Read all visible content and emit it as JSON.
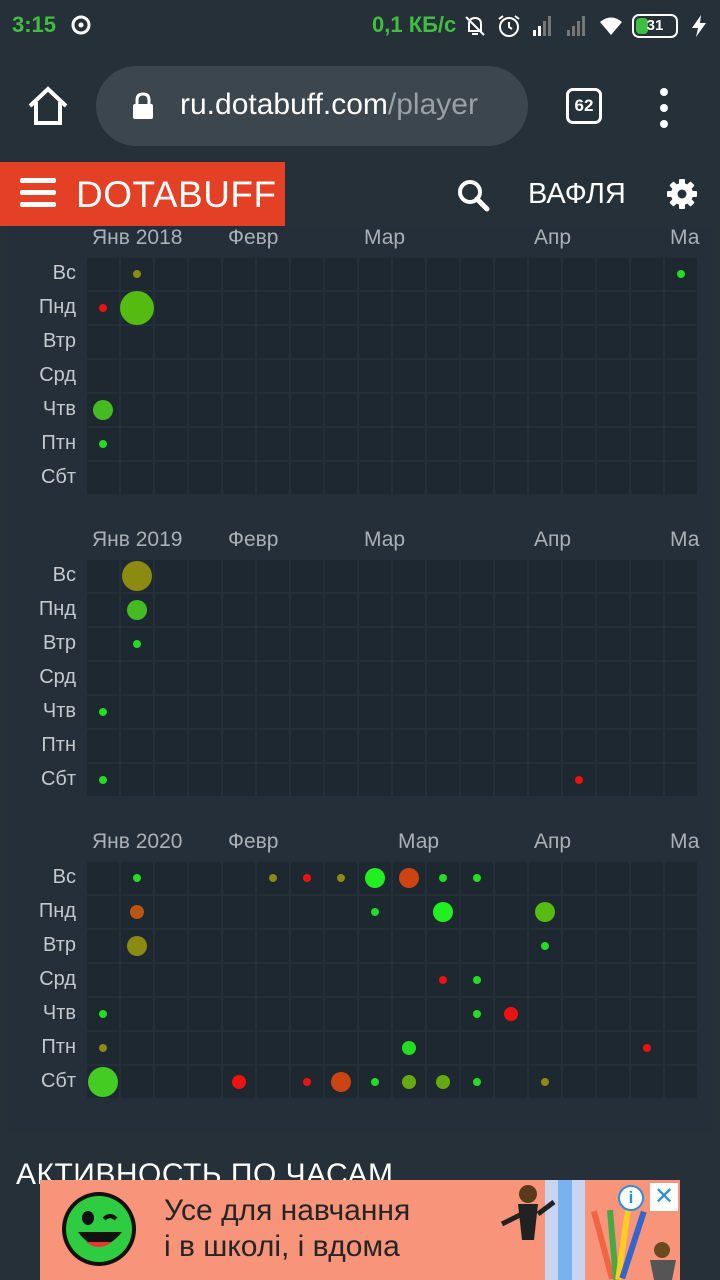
{
  "status_bar": {
    "time": "3:15",
    "net_speed": "0,1 КБ/с",
    "battery_level": "31",
    "battery_fraction": 0.31,
    "icons": [
      "cast-icon",
      "mute-icon",
      "alarm-icon",
      "signal-icon",
      "signal-off-icon",
      "wifi-icon",
      "battery-icon",
      "charging-icon"
    ]
  },
  "browser": {
    "url_host": "ru.dotabuff.com",
    "url_path": "/player",
    "tab_count": "62"
  },
  "site_header": {
    "brand": "DOTABUFF",
    "user_name": "ВАФЛЯ"
  },
  "activity": {
    "day_labels": [
      "Вс",
      "Пнд",
      "Втр",
      "Срд",
      "Чтв",
      "Птн",
      "Сбт"
    ],
    "years": [
      {
        "months": [
          {
            "label": "Янв 2018",
            "week": 0
          },
          {
            "label": "Февр",
            "week": 4
          },
          {
            "label": "Мар",
            "week": 8
          },
          {
            "label": "Апр",
            "week": 13
          },
          {
            "label": "Ма",
            "week": 17
          }
        ],
        "week_count": 18,
        "activity": [
          {
            "week": 1,
            "day": 0,
            "size": "s",
            "color": "#8a8b10"
          },
          {
            "week": 17,
            "day": 0,
            "size": "s",
            "color": "#22dd22"
          },
          {
            "week": 0,
            "day": 1,
            "size": "s",
            "color": "#ee1111"
          },
          {
            "week": 1,
            "day": 1,
            "size": "xl",
            "color": "#55bb11"
          },
          {
            "week": 0,
            "day": 4,
            "size": "m",
            "color": "#44bb22"
          },
          {
            "week": 0,
            "day": 5,
            "size": "s",
            "color": "#22dd22"
          }
        ]
      },
      {
        "months": [
          {
            "label": "Янв 2019",
            "week": 0
          },
          {
            "label": "Февр",
            "week": 4
          },
          {
            "label": "Мар",
            "week": 8
          },
          {
            "label": "Апр",
            "week": 13
          },
          {
            "label": "Ма",
            "week": 17
          }
        ],
        "week_count": 18,
        "activity": [
          {
            "week": 1,
            "day": 0,
            "size": "l",
            "color": "#8a8b10"
          },
          {
            "week": 1,
            "day": 1,
            "size": "m",
            "color": "#44bb22"
          },
          {
            "week": 1,
            "day": 2,
            "size": "s",
            "color": "#22dd22"
          },
          {
            "week": 0,
            "day": 4,
            "size": "s",
            "color": "#22dd22"
          },
          {
            "week": 0,
            "day": 6,
            "size": "s",
            "color": "#22dd22"
          },
          {
            "week": 14,
            "day": 6,
            "size": "s",
            "color": "#ee1111"
          }
        ]
      },
      {
        "months": [
          {
            "label": "Янв 2020",
            "week": 0
          },
          {
            "label": "Февр",
            "week": 4
          },
          {
            "label": "Мар",
            "week": 9
          },
          {
            "label": "Апр",
            "week": 13
          },
          {
            "label": "Ма",
            "week": 17
          }
        ],
        "week_count": 18,
        "activity": [
          {
            "week": 1,
            "day": 0,
            "size": "s",
            "color": "#22dd22"
          },
          {
            "week": 5,
            "day": 0,
            "size": "s",
            "color": "#8a8b10"
          },
          {
            "week": 6,
            "day": 0,
            "size": "s",
            "color": "#ee1111"
          },
          {
            "week": 7,
            "day": 0,
            "size": "s",
            "color": "#8a8b10"
          },
          {
            "week": 8,
            "day": 0,
            "size": "m",
            "color": "#22ee22"
          },
          {
            "week": 9,
            "day": 0,
            "size": "m",
            "color": "#cc4411"
          },
          {
            "week": 10,
            "day": 0,
            "size": "s",
            "color": "#22dd22"
          },
          {
            "week": 11,
            "day": 0,
            "size": "s",
            "color": "#22dd22"
          },
          {
            "week": 1,
            "day": 1,
            "size": "sm",
            "color": "#bb5511"
          },
          {
            "week": 8,
            "day": 1,
            "size": "s",
            "color": "#22dd22"
          },
          {
            "week": 10,
            "day": 1,
            "size": "m",
            "color": "#22ee22"
          },
          {
            "week": 13,
            "day": 1,
            "size": "m",
            "color": "#55bb11"
          },
          {
            "week": 1,
            "day": 2,
            "size": "m",
            "color": "#8a8b10"
          },
          {
            "week": 13,
            "day": 2,
            "size": "s",
            "color": "#22dd22"
          },
          {
            "week": 10,
            "day": 3,
            "size": "s",
            "color": "#ee1111"
          },
          {
            "week": 11,
            "day": 3,
            "size": "s",
            "color": "#22dd22"
          },
          {
            "week": 0,
            "day": 4,
            "size": "s",
            "color": "#22dd22"
          },
          {
            "week": 11,
            "day": 4,
            "size": "s",
            "color": "#22dd22"
          },
          {
            "week": 12,
            "day": 4,
            "size": "sm",
            "color": "#ee1111"
          },
          {
            "week": 0,
            "day": 5,
            "size": "s",
            "color": "#8a8b10"
          },
          {
            "week": 9,
            "day": 5,
            "size": "sm",
            "color": "#22dd22"
          },
          {
            "week": 16,
            "day": 5,
            "size": "s",
            "color": "#ee1111"
          },
          {
            "week": 0,
            "day": 6,
            "size": "l",
            "color": "#44cc22"
          },
          {
            "week": 4,
            "day": 6,
            "size": "sm",
            "color": "#ee1111"
          },
          {
            "week": 6,
            "day": 6,
            "size": "s",
            "color": "#ee1111"
          },
          {
            "week": 7,
            "day": 6,
            "size": "m",
            "color": "#cc4411"
          },
          {
            "week": 8,
            "day": 6,
            "size": "s",
            "color": "#22dd22"
          },
          {
            "week": 9,
            "day": 6,
            "size": "sm",
            "color": "#66aa11"
          },
          {
            "week": 10,
            "day": 6,
            "size": "sm",
            "color": "#66aa11"
          },
          {
            "week": 11,
            "day": 6,
            "size": "s",
            "color": "#22dd22"
          },
          {
            "week": 13,
            "day": 6,
            "size": "s",
            "color": "#8a8b10"
          }
        ]
      }
    ]
  },
  "section_below": {
    "title": "АКТИВНОСТЬ ПО ЧАСАМ"
  },
  "ad": {
    "line1": "Усе для навчання",
    "line2": "і в школі, і вдома",
    "info_label": "i",
    "close_label": "✕"
  }
}
